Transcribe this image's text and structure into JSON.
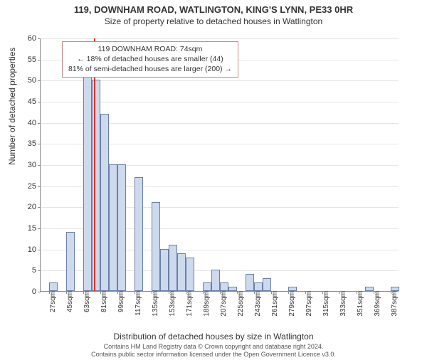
{
  "header": {
    "line1": "119, DOWNHAM ROAD, WATLINGTON, KING'S LYNN, PE33 0HR",
    "line2": "Size of property relative to detached houses in Watlington"
  },
  "chart": {
    "type": "histogram",
    "background_color": "#ffffff",
    "grid_color": "#e5e5e5",
    "axis_color": "#888888",
    "bar_fill": "#cdd9ed",
    "bar_border": "#6a7fa5",
    "marker_color": "#d9332a",
    "ylabel": "Number of detached properties",
    "xlabel": "Distribution of detached houses by size in Watlington",
    "ylim": [
      0,
      60
    ],
    "ytick_step": 5,
    "yticks": [
      0,
      5,
      10,
      15,
      20,
      25,
      30,
      35,
      40,
      45,
      50,
      55,
      60
    ],
    "xtick_step": 18,
    "xtick_start": 27,
    "xticks": [
      27,
      45,
      63,
      81,
      99,
      117,
      135,
      153,
      171,
      189,
      207,
      225,
      243,
      261,
      279,
      297,
      315,
      333,
      351,
      369,
      387
    ],
    "xtick_unit": "sqm",
    "bin_start": 18,
    "bin_width": 9,
    "bins": [
      {
        "x": 18,
        "count": 0
      },
      {
        "x": 27,
        "count": 2
      },
      {
        "x": 36,
        "count": 0
      },
      {
        "x": 45,
        "count": 14
      },
      {
        "x": 54,
        "count": 0
      },
      {
        "x": 63,
        "count": 52
      },
      {
        "x": 72,
        "count": 50
      },
      {
        "x": 81,
        "count": 42
      },
      {
        "x": 90,
        "count": 30
      },
      {
        "x": 99,
        "count": 30
      },
      {
        "x": 108,
        "count": 0
      },
      {
        "x": 117,
        "count": 27
      },
      {
        "x": 126,
        "count": 0
      },
      {
        "x": 135,
        "count": 21
      },
      {
        "x": 144,
        "count": 10
      },
      {
        "x": 153,
        "count": 11
      },
      {
        "x": 162,
        "count": 9
      },
      {
        "x": 171,
        "count": 8
      },
      {
        "x": 180,
        "count": 0
      },
      {
        "x": 189,
        "count": 2
      },
      {
        "x": 198,
        "count": 5
      },
      {
        "x": 207,
        "count": 2
      },
      {
        "x": 216,
        "count": 1
      },
      {
        "x": 225,
        "count": 0
      },
      {
        "x": 234,
        "count": 4
      },
      {
        "x": 243,
        "count": 2
      },
      {
        "x": 252,
        "count": 3
      },
      {
        "x": 261,
        "count": 0
      },
      {
        "x": 270,
        "count": 0
      },
      {
        "x": 279,
        "count": 1
      },
      {
        "x": 288,
        "count": 0
      },
      {
        "x": 297,
        "count": 0
      },
      {
        "x": 306,
        "count": 0
      },
      {
        "x": 315,
        "count": 0
      },
      {
        "x": 324,
        "count": 0
      },
      {
        "x": 333,
        "count": 0
      },
      {
        "x": 342,
        "count": 0
      },
      {
        "x": 351,
        "count": 0
      },
      {
        "x": 360,
        "count": 1
      },
      {
        "x": 369,
        "count": 0
      },
      {
        "x": 378,
        "count": 0
      },
      {
        "x": 387,
        "count": 1
      }
    ],
    "x_range": [
      18,
      396
    ],
    "marker_x": 74,
    "annotation": {
      "line1": "119 DOWNHAM ROAD: 74sqm",
      "line2": "← 18% of detached houses are smaller (44)",
      "line3": "81% of semi-detached houses are larger (200) →",
      "border_color": "#c28a8a"
    }
  },
  "footer": {
    "line1": "Contains HM Land Registry data © Crown copyright and database right 2024.",
    "line2": "Contains public sector information licensed under the Open Government Licence v3.0."
  },
  "fontsize": {
    "title": 13,
    "subtitle": 12,
    "axis_label": 12,
    "tick": 11,
    "annotation": 10.5,
    "footer": 9
  }
}
